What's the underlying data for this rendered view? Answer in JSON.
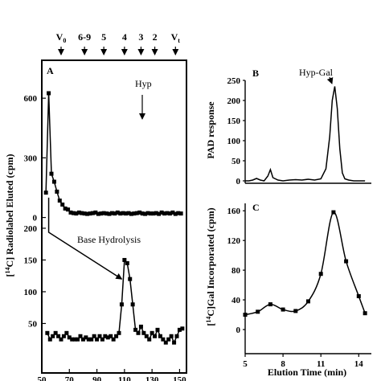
{
  "fractions": {
    "labels": [
      "V0",
      "6-9",
      "5",
      "4",
      "3",
      "2",
      "Vt"
    ],
    "x": [
      64,
      81,
      95,
      110,
      122,
      132,
      147
    ]
  },
  "chart_data": [
    {
      "type": "line",
      "panel": "A",
      "ylabel": "[14C] Radiolabel Eluted (cpm)",
      "annotations": [
        "Hyp",
        "Base Hydrolysis"
      ],
      "x_ticks": [
        50,
        70,
        90,
        110,
        130,
        150
      ],
      "xlim": [
        50,
        155
      ],
      "top": {
        "ylim": [
          -30,
          730
        ],
        "y_ticks": [
          0,
          300,
          600
        ],
        "x": [
          53,
          55,
          57,
          59,
          61,
          63,
          65,
          67,
          69,
          71,
          73,
          75,
          77,
          79,
          81,
          83,
          85,
          87,
          89,
          91,
          93,
          95,
          97,
          99,
          101,
          103,
          105,
          107,
          109,
          111,
          113,
          115,
          117,
          119,
          121,
          123,
          125,
          127,
          129,
          131,
          133,
          135,
          137,
          139,
          141,
          143,
          145,
          147,
          149,
          151
        ],
        "y": [
          125,
          625,
          220,
          180,
          130,
          85,
          65,
          45,
          40,
          25,
          22,
          20,
          25,
          22,
          20,
          18,
          20,
          22,
          25,
          18,
          20,
          22,
          20,
          18,
          22,
          20,
          25,
          20,
          22,
          20,
          22,
          18,
          20,
          22,
          25,
          20,
          18,
          22,
          20,
          20,
          22,
          18,
          25,
          20,
          22,
          20,
          25,
          18,
          22,
          20
        ]
      },
      "bottom": {
        "ylim": [
          5,
          205
        ],
        "y_ticks": [
          50,
          100,
          150,
          200
        ],
        "x": [
          54,
          56,
          58,
          60,
          62,
          64,
          66,
          68,
          70,
          72,
          74,
          76,
          78,
          80,
          82,
          84,
          86,
          88,
          90,
          92,
          94,
          96,
          98,
          100,
          102,
          104,
          106,
          108,
          110,
          112,
          114,
          116,
          118,
          120,
          122,
          124,
          126,
          128,
          130,
          132,
          134,
          136,
          138,
          140,
          142,
          144,
          146,
          148,
          150,
          152
        ],
        "y": [
          35,
          25,
          30,
          35,
          30,
          25,
          30,
          35,
          28,
          25,
          25,
          25,
          30,
          25,
          28,
          25,
          25,
          30,
          25,
          30,
          25,
          30,
          28,
          30,
          25,
          30,
          35,
          80,
          150,
          145,
          120,
          80,
          40,
          35,
          45,
          35,
          30,
          25,
          35,
          30,
          40,
          30,
          25,
          20,
          25,
          30,
          20,
          30,
          40,
          42
        ]
      },
      "arrows": [
        {
          "from": [
            55,
            200
          ],
          "to": [
            108,
            120
          ]
        }
      ]
    },
    {
      "type": "line",
      "panel": "B",
      "ylabel": "PAD response",
      "annotations": [
        "Hyp-Gal"
      ],
      "xlim": [
        5,
        15
      ],
      "ylim": [
        0,
        250
      ],
      "y_ticks": [
        0,
        50,
        100,
        150,
        200,
        250
      ],
      "x": [
        5.0,
        5.3,
        5.6,
        5.9,
        6.2,
        6.5,
        6.8,
        7.0,
        7.2,
        7.6,
        8.0,
        8.5,
        9.0,
        9.5,
        10.0,
        10.5,
        11.0,
        11.4,
        11.7,
        11.9,
        12.1,
        12.3,
        12.5,
        12.7,
        12.9,
        13.2,
        13.6,
        14.0,
        14.5
      ],
      "y": [
        0,
        0,
        2,
        6,
        2,
        0,
        12,
        28,
        8,
        2,
        0,
        2,
        3,
        2,
        4,
        2,
        5,
        30,
        110,
        200,
        235,
        180,
        80,
        20,
        5,
        2,
        0,
        0,
        0
      ]
    },
    {
      "type": "line",
      "panel": "C",
      "ylabel": "[14C]Gal Incorporated (cpm)",
      "xlabel": "Elution Time (min)",
      "xlim": [
        5,
        15
      ],
      "ylim": [
        0,
        170
      ],
      "y_ticks": [
        0,
        40,
        80,
        120,
        160
      ],
      "x_ticks": [
        5,
        8,
        11,
        14
      ],
      "x": [
        5,
        6,
        7,
        8,
        9,
        10,
        11,
        12,
        13,
        14,
        14.5
      ],
      "y": [
        20,
        24,
        34,
        27,
        25,
        38,
        75,
        158,
        92,
        45,
        22
      ]
    }
  ]
}
